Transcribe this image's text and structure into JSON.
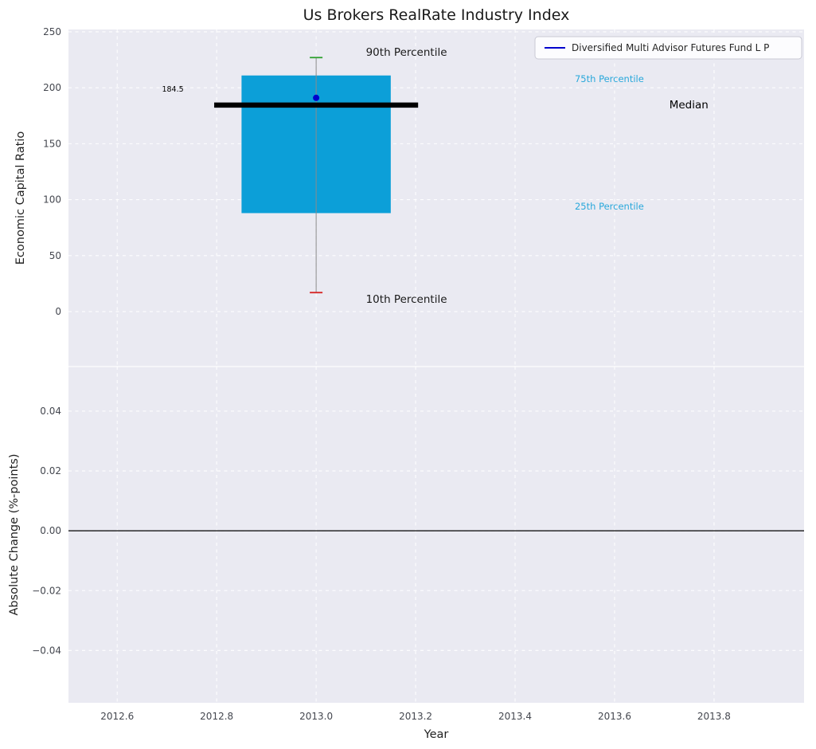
{
  "figure": {
    "background": "#ffffff",
    "axes_background": "#eaeaf2",
    "grid_color": "#ffffff",
    "tick_color": "#44474f",
    "label_color": "#222222",
    "title_color": "#1a1a1a"
  },
  "chart_data": [
    {
      "type": "box",
      "title": "Us Brokers RealRate Industry Index",
      "ylabel": "Economic Capital Ratio",
      "xlim": [
        2012.502,
        2013.981
      ],
      "ylim": [
        -49.1,
        252.1
      ],
      "yticks": [
        0,
        50,
        100,
        150,
        200,
        250
      ],
      "ytick_labels": [
        "0",
        "50",
        "100",
        "150",
        "200",
        "250"
      ],
      "xticks": [
        2012.6,
        2012.8,
        2013.0,
        2013.2,
        2013.4,
        2013.6,
        2013.8
      ],
      "xtick_labels": [],
      "series": {
        "box": {
          "x_center": 2013.0,
          "x_left": 2012.85,
          "x_right": 2013.15,
          "q1": 88,
          "q3": 211,
          "median": 184.5,
          "median_x_left": 2012.795,
          "median_x_right": 2013.205,
          "whisker_low": 17,
          "whisker_high": 227,
          "observation": 191
        }
      },
      "colors": {
        "box_fill": "#0c9fd8",
        "median": "#000000",
        "whisker": "#8a8a8a",
        "cap_high": "#2ca02c",
        "cap_low": "#d62728",
        "observation": "#0000cd",
        "annotation_cyan": "#29a8db",
        "annotation_dark": "#1a1a1a"
      },
      "median_label": {
        "text": "184.5",
        "x": 2012.69,
        "y": 199,
        "size": 9.5,
        "color": "#000000"
      },
      "annotations": [
        {
          "text": "90th Percentile",
          "x": 2013.1,
          "y": 232,
          "color": "#1a1a1a",
          "size": 13.5
        },
        {
          "text": "10th Percentile",
          "x": 2013.1,
          "y": 11,
          "color": "#1a1a1a",
          "size": 13.5
        },
        {
          "text": "75th Percentile",
          "x": 2013.52,
          "y": 208,
          "color": "#29a8db",
          "size": 11.5
        },
        {
          "text": "25th Percentile",
          "x": 2013.52,
          "y": 94,
          "color": "#29a8db",
          "size": 11.5
        },
        {
          "text": "Median",
          "x": 2013.71,
          "y": 185,
          "color": "#000000",
          "size": 13.5
        }
      ],
      "legend": {
        "label": "Diversified Multi Advisor Futures Fund L P",
        "line_color": "#0000cd",
        "position": "upper right"
      }
    },
    {
      "type": "line",
      "ylabel": "Absolute Change (%-points)",
      "xlabel": "Year",
      "xlim": [
        2012.502,
        2013.981
      ],
      "ylim": [
        -0.0575,
        0.0549
      ],
      "yticks": [
        -0.04,
        -0.02,
        0,
        0.02,
        0.04
      ],
      "ytick_labels": [
        "−0.04",
        "−0.02",
        "0.00",
        "0.02",
        "0.04"
      ],
      "xticks": [
        2012.6,
        2012.8,
        2013.0,
        2013.2,
        2013.4,
        2013.6,
        2013.8
      ],
      "xtick_labels": [
        "2012.6",
        "2012.8",
        "2013.0",
        "2013.2",
        "2013.4",
        "2013.6",
        "2013.8"
      ],
      "zero_line": {
        "y": 0,
        "color": "#000000"
      }
    }
  ]
}
